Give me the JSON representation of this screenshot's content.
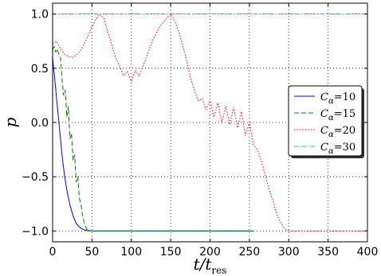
{
  "chart_data": {
    "type": "line",
    "xlabel": "t/t",
    "xlabel_sub": "res",
    "ylabel": "p",
    "xlim": [
      0,
      400
    ],
    "ylim": [
      -1.1,
      1.1
    ],
    "xticks": [
      0,
      50,
      100,
      150,
      200,
      250,
      300,
      350,
      400
    ],
    "yticks": [
      -1.0,
      -0.5,
      0.0,
      0.5,
      1.0
    ],
    "xtick_labels": [
      "0",
      "50",
      "100",
      "150",
      "200",
      "250",
      "300",
      "350",
      "400"
    ],
    "ytick_labels": [
      "−1.0",
      "−0.5",
      "0.0",
      "0.5",
      "1.0"
    ],
    "grid": true,
    "legend_position": "right",
    "series": [
      {
        "name": "C_α=10",
        "label_main": "C",
        "label_sub": "α",
        "label_val": "=10",
        "color": "#0000ff",
        "dash": "",
        "x": [
          0,
          2,
          4,
          6,
          8,
          10,
          12,
          15,
          18,
          22,
          26,
          30,
          35,
          40,
          50,
          60,
          80,
          100,
          150,
          200,
          255
        ],
        "y": [
          0.6,
          0.45,
          0.3,
          0.15,
          0.0,
          -0.15,
          -0.3,
          -0.48,
          -0.62,
          -0.76,
          -0.86,
          -0.93,
          -0.97,
          -0.99,
          -1.0,
          -1.0,
          -1.0,
          -1.0,
          -1.0,
          -1.0,
          -1.0
        ]
      },
      {
        "name": "C_α=15",
        "label_main": "C",
        "label_sub": "α",
        "label_val": "=15",
        "color": "#008000",
        "dash": "6,3",
        "x": [
          0,
          2,
          4,
          6,
          8,
          10,
          12,
          14,
          16,
          18,
          20,
          22,
          24,
          26,
          28,
          30,
          32,
          34,
          36,
          38,
          40,
          42,
          44,
          46,
          50,
          60,
          100,
          200,
          255
        ],
        "y": [
          0.67,
          0.7,
          0.65,
          0.68,
          0.63,
          0.6,
          0.4,
          0.25,
          0.3,
          0.05,
          0.15,
          -0.15,
          -0.1,
          -0.35,
          -0.3,
          -0.55,
          -0.5,
          -0.7,
          -0.75,
          -0.85,
          -0.92,
          -0.96,
          -0.99,
          -1.0,
          -1.0,
          -1.0,
          -1.0,
          -1.0,
          -1.0
        ]
      },
      {
        "name": "C_α=20",
        "label_main": "C",
        "label_sub": "α",
        "label_val": "=20",
        "color": "#ff0000",
        "dash": "1.5,2",
        "x": [
          0,
          5,
          10,
          15,
          20,
          25,
          30,
          35,
          40,
          45,
          50,
          55,
          60,
          65,
          70,
          75,
          80,
          85,
          90,
          95,
          100,
          105,
          110,
          115,
          120,
          125,
          130,
          135,
          140,
          145,
          150,
          155,
          160,
          165,
          170,
          175,
          180,
          185,
          190,
          195,
          200,
          205,
          210,
          215,
          220,
          225,
          230,
          235,
          240,
          245,
          250,
          255,
          260,
          265,
          270,
          275,
          280,
          285,
          290,
          295,
          300,
          320,
          350,
          400
        ],
        "y": [
          0.73,
          0.75,
          0.68,
          0.63,
          0.61,
          0.6,
          0.62,
          0.66,
          0.72,
          0.8,
          0.88,
          0.95,
          1.0,
          0.96,
          0.84,
          0.72,
          0.6,
          0.52,
          0.43,
          0.47,
          0.38,
          0.48,
          0.43,
          0.52,
          0.62,
          0.72,
          0.8,
          0.87,
          0.92,
          0.96,
          1.0,
          0.94,
          0.84,
          0.72,
          0.58,
          0.42,
          0.3,
          0.2,
          0.22,
          0.12,
          0.2,
          0.05,
          0.18,
          0.0,
          0.15,
          -0.02,
          0.14,
          -0.05,
          0.1,
          -0.12,
          0.0,
          -0.2,
          -0.25,
          -0.35,
          -0.48,
          -0.62,
          -0.72,
          -0.85,
          -0.93,
          -0.98,
          -1.0,
          -1.0,
          -1.0,
          -1.0
        ]
      },
      {
        "name": "C_α=30",
        "label_main": "C",
        "label_sub": "α",
        "label_val": "=30",
        "color": "#00bfbf",
        "dash": "5,2,1.5,2",
        "x": [
          0,
          50,
          100,
          150,
          200,
          250,
          300,
          350,
          400
        ],
        "y": [
          1.0,
          1.0,
          1.0,
          1.0,
          1.0,
          1.0,
          1.0,
          1.0,
          1.0
        ]
      }
    ]
  }
}
